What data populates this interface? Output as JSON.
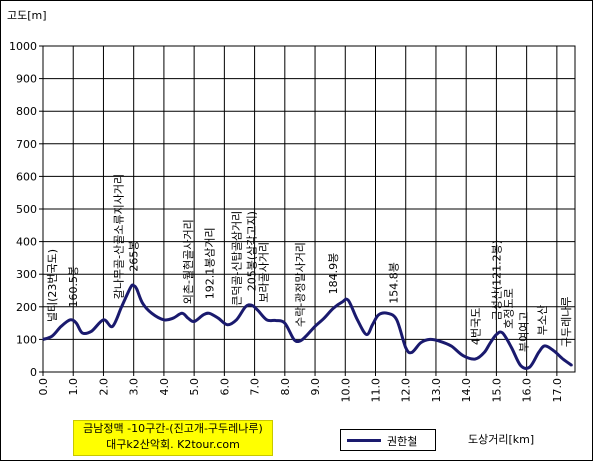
{
  "chart_data": {
    "type": "line",
    "title": "금남정맥 -10구간-(진고개-구두레나루)",
    "subtitle": "대구k2산악회.  K2tour.com",
    "ylabel": "고도[m]",
    "xlabel": "도상거리[km]",
    "ylim": [
      0,
      1000
    ],
    "xlim": [
      0,
      17.6
    ],
    "y_ticks": [
      0,
      100,
      200,
      300,
      400,
      500,
      600,
      700,
      800,
      900,
      1000
    ],
    "x_ticks": [
      "0.0",
      "1.0",
      "2.0",
      "3.0",
      "4.0",
      "5.0",
      "6.0",
      "7.0",
      "8.0",
      "9.0",
      "10.0",
      "11.0",
      "12.0",
      "13.0",
      "14.0",
      "15.0",
      "16.0",
      "17.0"
    ],
    "grid": true,
    "legend_position": "bottom-center",
    "series": [
      {
        "name": "권한철",
        "color": "#1a1a6e",
        "x": [
          0,
          0.3,
          0.6,
          0.9,
          1.1,
          1.3,
          1.6,
          2.0,
          2.3,
          2.6,
          2.9,
          3.0,
          3.1,
          3.3,
          3.6,
          4.0,
          4.3,
          4.6,
          4.8,
          5.0,
          5.3,
          5.5,
          5.8,
          6.1,
          6.4,
          6.7,
          6.9,
          7.1,
          7.4,
          7.7,
          8.0,
          8.3,
          8.5,
          8.7,
          9.0,
          9.3,
          9.6,
          9.9,
          10.1,
          10.4,
          10.7,
          10.9,
          11.1,
          11.4,
          11.7,
          12.0,
          12.2,
          12.5,
          12.8,
          13.1,
          13.5,
          13.9,
          14.3,
          14.6,
          14.8,
          15.0,
          15.2,
          15.5,
          15.8,
          16.1,
          16.4,
          16.6,
          16.9,
          17.2,
          17.5
        ],
        "values": [
          100,
          110,
          140,
          160,
          150,
          120,
          125,
          160,
          140,
          200,
          260,
          265,
          255,
          210,
          180,
          160,
          165,
          180,
          165,
          155,
          175,
          180,
          165,
          145,
          160,
          200,
          205,
          190,
          160,
          158,
          150,
          100,
          95,
          110,
          140,
          165,
          195,
          215,
          220,
          160,
          115,
          145,
          175,
          180,
          160,
          75,
          60,
          90,
          100,
          95,
          80,
          50,
          40,
          60,
          90,
          115,
          120,
          75,
          20,
          15,
          60,
          80,
          65,
          40,
          20
        ]
      }
    ],
    "annotations": [
      {
        "text": "널티(23번국도)",
        "x": 0.3
      },
      {
        "text": "160.5봉",
        "x": 1.0
      },
      {
        "text": "갈나무골-산골소류지사거리",
        "x": 2.5
      },
      {
        "text": "265봉",
        "x": 3.0
      },
      {
        "text": "외촌-월현골사거리",
        "x": 4.8
      },
      {
        "text": "192.1봉삼거리",
        "x": 5.5
      },
      {
        "text": "큰덕골-신탑골삼거리",
        "x": 6.4
      },
      {
        "text": "205봉(삼각고지)",
        "x": 6.9
      },
      {
        "text": "보라골사거리",
        "x": 7.3
      },
      {
        "text": "수락-광정말사거리",
        "x": 8.5
      },
      {
        "text": "184.9봉",
        "x": 9.6
      },
      {
        "text": "154.8봉",
        "x": 11.6
      },
      {
        "text": "4번국도",
        "x": 14.3
      },
      {
        "text": "금성산(121.2봉)",
        "x": 15.0
      },
      {
        "text": "호정도로",
        "x": 15.4
      },
      {
        "text": "부여여고",
        "x": 15.9
      },
      {
        "text": "부소산",
        "x": 16.5
      },
      {
        "text": "구두레나루",
        "x": 17.3
      }
    ]
  }
}
